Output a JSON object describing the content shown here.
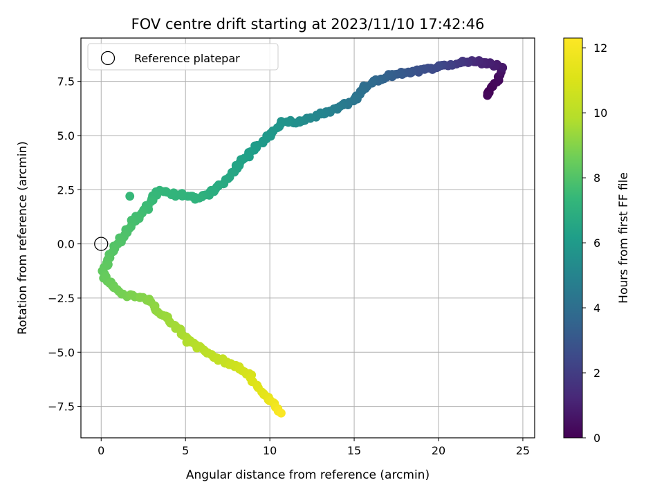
{
  "chart_data": {
    "type": "scatter",
    "title": "FOV centre drift starting at 2023/11/10 17:42:46",
    "xlabel": "Angular distance from reference (arcmin)",
    "ylabel": "Rotation from reference (arcmin)",
    "xlim": [
      -1.2,
      25.7
    ],
    "ylim": [
      -8.95,
      9.5
    ],
    "x_ticks": [
      0,
      5,
      10,
      15,
      20,
      25
    ],
    "y_ticks": [
      -7.5,
      -5.0,
      -2.5,
      0.0,
      2.5,
      5.0,
      7.5
    ],
    "x_tick_labels": [
      "0",
      "5",
      "10",
      "15",
      "20",
      "25"
    ],
    "y_tick_labels": [
      "−7.5",
      "−5.0",
      "−2.5",
      "0.0",
      "2.5",
      "5.0",
      "7.5"
    ],
    "grid": true,
    "legend": {
      "placement": "top-left",
      "entries": [
        "Reference platepar"
      ]
    },
    "reference_point": {
      "name": "Reference platepar",
      "x": 0,
      "y": 0
    },
    "colorbar": {
      "label": "Hours from first FF file",
      "colormap": "viridis",
      "range": [
        0,
        12.3
      ],
      "ticks": [
        0,
        2,
        4,
        6,
        8,
        10,
        12
      ],
      "tick_labels": [
        "0",
        "2",
        "4",
        "6",
        "8",
        "10",
        "12"
      ]
    },
    "path_anchors": [
      {
        "t": 0.0,
        "x": 22.9,
        "y": 6.85
      },
      {
        "t": 0.3,
        "x": 23.6,
        "y": 7.7
      },
      {
        "t": 0.7,
        "x": 23.8,
        "y": 8.2
      },
      {
        "t": 1.2,
        "x": 22.3,
        "y": 8.4
      },
      {
        "t": 1.8,
        "x": 21.2,
        "y": 8.35
      },
      {
        "t": 2.4,
        "x": 20.1,
        "y": 8.2
      },
      {
        "t": 2.8,
        "x": 18.6,
        "y": 7.95
      },
      {
        "t": 3.3,
        "x": 17.2,
        "y": 7.8
      },
      {
        "t": 3.8,
        "x": 16.0,
        "y": 7.45
      },
      {
        "t": 4.3,
        "x": 14.9,
        "y": 6.6
      },
      {
        "t": 4.8,
        "x": 13.6,
        "y": 6.15
      },
      {
        "t": 5.3,
        "x": 12.0,
        "y": 5.7
      },
      {
        "t": 5.7,
        "x": 10.8,
        "y": 5.6
      },
      {
        "t": 6.0,
        "x": 9.4,
        "y": 4.6
      },
      {
        "t": 6.3,
        "x": 8.4,
        "y": 3.9
      },
      {
        "t": 6.6,
        "x": 7.5,
        "y": 3.0
      },
      {
        "t": 6.9,
        "x": 6.4,
        "y": 2.3
      },
      {
        "t": 7.1,
        "x": 5.8,
        "y": 2.1
      },
      {
        "t": 7.3,
        "x": 3.4,
        "y": 2.45
      },
      {
        "t": 7.6,
        "x": 2.5,
        "y": 1.5
      },
      {
        "t": 7.9,
        "x": 1.4,
        "y": 0.5
      },
      {
        "t": 8.1,
        "x": 0.6,
        "y": -0.4
      },
      {
        "t": 8.4,
        "x": 0.1,
        "y": -1.5
      },
      {
        "t": 8.7,
        "x": 1.2,
        "y": -2.3
      },
      {
        "t": 9.0,
        "x": 2.6,
        "y": -2.5
      },
      {
        "t": 9.4,
        "x": 4.0,
        "y": -3.5
      },
      {
        "t": 9.8,
        "x": 5.4,
        "y": -4.6
      },
      {
        "t": 10.3,
        "x": 7.2,
        "y": -5.4
      },
      {
        "t": 10.8,
        "x": 8.6,
        "y": -5.9
      },
      {
        "t": 11.3,
        "x": 9.6,
        "y": -6.9
      },
      {
        "t": 11.8,
        "x": 10.3,
        "y": -7.5
      },
      {
        "t": 12.2,
        "x": 10.6,
        "y": -7.8
      }
    ],
    "isolated_points": [
      {
        "t": 7.4,
        "x": 1.7,
        "y": 2.2
      },
      {
        "t": 0.2,
        "x": 22.9,
        "y": 6.85
      }
    ]
  }
}
